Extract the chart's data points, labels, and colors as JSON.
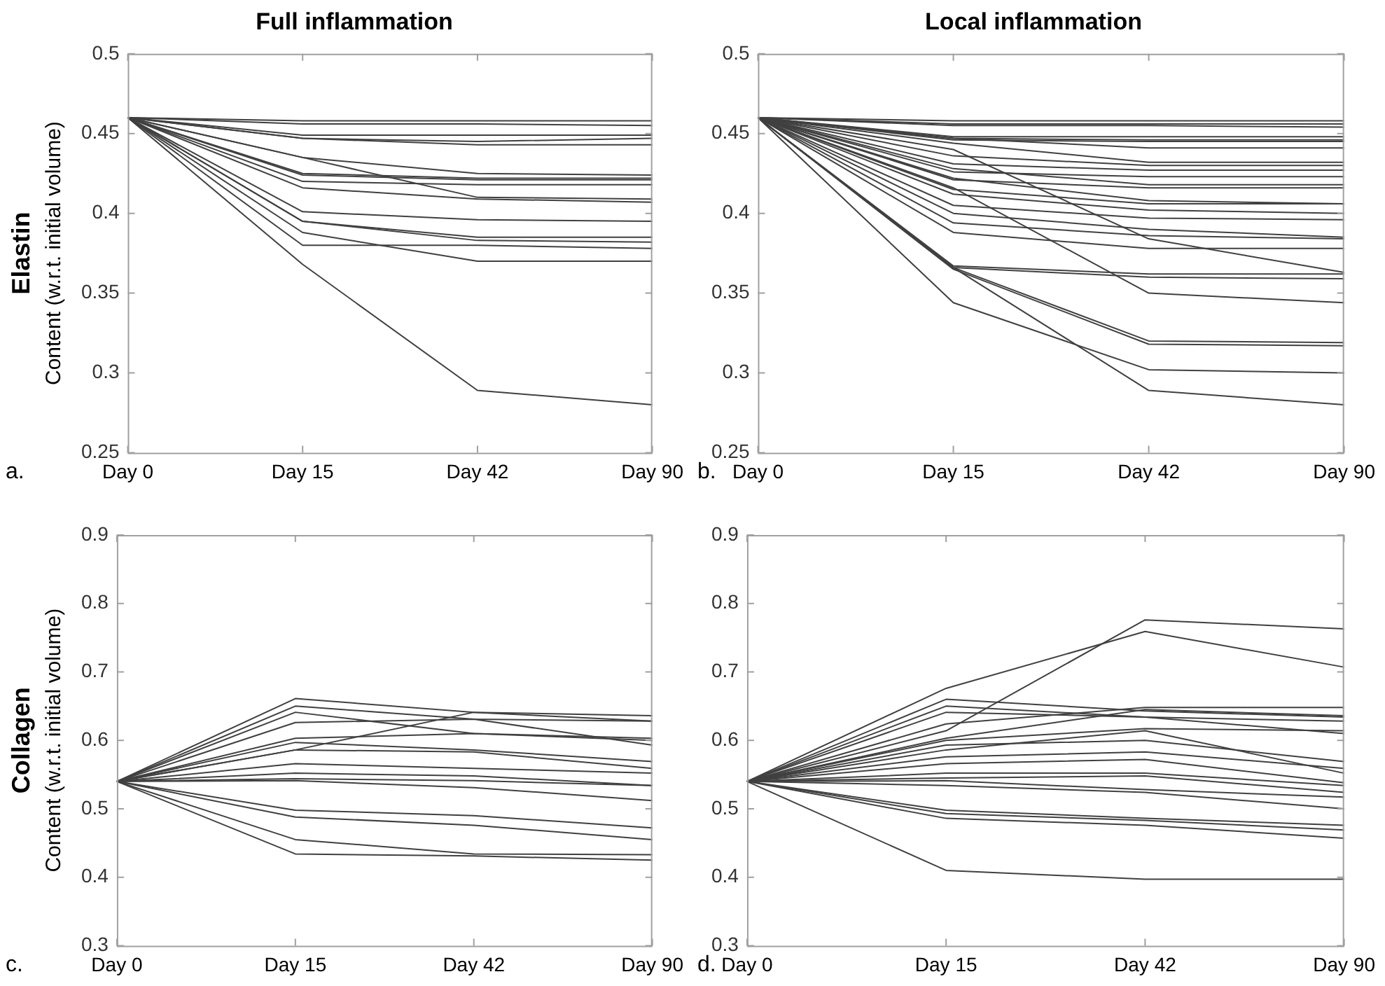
{
  "chart_data": [
    {
      "type": "line",
      "title": "Full inflammation",
      "ylabel": "Content (w.r.t. initial volume)",
      "annotations": [
        "Elastin",
        "a."
      ],
      "categories": [
        "Day 0",
        "Day 15",
        "Day 42",
        "Day 90"
      ],
      "ylim": [
        0.25,
        0.5
      ],
      "yticks": [
        0.25,
        0.3,
        0.35,
        0.4,
        0.45,
        0.5
      ],
      "grid": false,
      "legend": false,
      "series": [
        {
          "color": "#404040",
          "values": [
            0.46,
            0.458,
            0.458,
            0.458
          ]
        },
        {
          "color": "#404040",
          "values": [
            0.46,
            0.456,
            0.456,
            0.455
          ]
        },
        {
          "color": "#404040",
          "values": [
            0.46,
            0.449,
            0.449,
            0.449
          ]
        },
        {
          "color": "#404040",
          "values": [
            0.46,
            0.447,
            0.445,
            0.447
          ]
        },
        {
          "color": "#404040",
          "values": [
            0.46,
            0.447,
            0.443,
            0.443
          ]
        },
        {
          "color": "#404040",
          "values": [
            0.46,
            0.435,
            0.425,
            0.424
          ]
        },
        {
          "color": "#404040",
          "values": [
            0.46,
            0.425,
            0.422,
            0.422
          ]
        },
        {
          "color": "#404040",
          "values": [
            0.46,
            0.424,
            0.421,
            0.421
          ]
        },
        {
          "color": "#404040",
          "values": [
            0.46,
            0.42,
            0.418,
            0.418
          ]
        },
        {
          "color": "#404040",
          "values": [
            0.46,
            0.435,
            0.41,
            0.409
          ]
        },
        {
          "color": "#404040",
          "values": [
            0.46,
            0.416,
            0.409,
            0.407
          ]
        },
        {
          "color": "#404040",
          "values": [
            0.46,
            0.401,
            0.396,
            0.395
          ]
        },
        {
          "color": "#404040",
          "values": [
            0.46,
            0.395,
            0.385,
            0.385
          ]
        },
        {
          "color": "#404040",
          "values": [
            0.46,
            0.395,
            0.383,
            0.382
          ]
        },
        {
          "color": "#404040",
          "values": [
            0.46,
            0.38,
            0.38,
            0.378
          ]
        },
        {
          "color": "#404040",
          "values": [
            0.46,
            0.388,
            0.37,
            0.37
          ]
        },
        {
          "color": "#404040",
          "values": [
            0.46,
            0.368,
            0.289,
            0.28
          ]
        }
      ]
    },
    {
      "type": "line",
      "title": "Local inflammation",
      "annotations": [
        "b."
      ],
      "categories": [
        "Day 0",
        "Day 15",
        "Day 42",
        "Day 90"
      ],
      "ylim": [
        0.25,
        0.5
      ],
      "yticks": [
        0.25,
        0.3,
        0.35,
        0.4,
        0.45,
        0.5
      ],
      "grid": false,
      "legend": false,
      "series": [
        {
          "color": "#404040",
          "values": [
            0.46,
            0.458,
            0.458,
            0.458
          ]
        },
        {
          "color": "#404040",
          "values": [
            0.46,
            0.456,
            0.456,
            0.456
          ]
        },
        {
          "color": "#404040",
          "values": [
            0.46,
            0.455,
            0.455,
            0.454
          ]
        },
        {
          "color": "#404040",
          "values": [
            0.46,
            0.448,
            0.448,
            0.448
          ]
        },
        {
          "color": "#404040",
          "values": [
            0.46,
            0.447,
            0.446,
            0.446
          ]
        },
        {
          "color": "#404040",
          "values": [
            0.46,
            0.446,
            0.445,
            0.445
          ]
        },
        {
          "color": "#404040",
          "values": [
            0.46,
            0.447,
            0.441,
            0.441
          ]
        },
        {
          "color": "#404040",
          "values": [
            0.46,
            0.444,
            0.432,
            0.432
          ]
        },
        {
          "color": "#404040",
          "values": [
            0.46,
            0.436,
            0.43,
            0.43
          ]
        },
        {
          "color": "#404040",
          "values": [
            0.46,
            0.431,
            0.427,
            0.427
          ]
        },
        {
          "color": "#404040",
          "values": [
            0.46,
            0.426,
            0.423,
            0.423
          ]
        },
        {
          "color": "#404040",
          "values": [
            0.46,
            0.428,
            0.418,
            0.418
          ]
        },
        {
          "color": "#404040",
          "values": [
            0.46,
            0.421,
            0.416,
            0.416
          ]
        },
        {
          "color": "#404040",
          "values": [
            0.46,
            0.422,
            0.408,
            0.406
          ]
        },
        {
          "color": "#404040",
          "values": [
            0.46,
            0.415,
            0.406,
            0.406
          ]
        },
        {
          "color": "#404040",
          "values": [
            0.46,
            0.412,
            0.402,
            0.4
          ]
        },
        {
          "color": "#404040",
          "values": [
            0.46,
            0.405,
            0.397,
            0.396
          ]
        },
        {
          "color": "#404040",
          "values": [
            0.46,
            0.4,
            0.39,
            0.385
          ]
        },
        {
          "color": "#404040",
          "values": [
            0.46,
            0.394,
            0.386,
            0.384
          ]
        },
        {
          "color": "#404040",
          "values": [
            0.46,
            0.388,
            0.378,
            0.378
          ]
        },
        {
          "color": "#404040",
          "values": [
            0.46,
            0.44,
            0.384,
            0.363
          ]
        },
        {
          "color": "#404040",
          "values": [
            0.46,
            0.416,
            0.35,
            0.344
          ]
        },
        {
          "color": "#404040",
          "values": [
            0.46,
            0.367,
            0.362,
            0.362
          ]
        },
        {
          "color": "#404040",
          "values": [
            0.46,
            0.366,
            0.36,
            0.359
          ]
        },
        {
          "color": "#404040",
          "values": [
            0.46,
            0.366,
            0.32,
            0.319
          ]
        },
        {
          "color": "#404040",
          "values": [
            0.46,
            0.365,
            0.318,
            0.317
          ]
        },
        {
          "color": "#404040",
          "values": [
            0.46,
            0.344,
            0.302,
            0.3
          ]
        },
        {
          "color": "#404040",
          "values": [
            0.46,
            0.366,
            0.289,
            0.28
          ]
        }
      ]
    },
    {
      "type": "line",
      "ylabel": "Content (w.r.t. initial volume)",
      "annotations": [
        "Collagen",
        "c."
      ],
      "categories": [
        "Day 0",
        "Day 15",
        "Day 42",
        "Day 90"
      ],
      "ylim": [
        0.3,
        0.9
      ],
      "yticks": [
        0.3,
        0.4,
        0.5,
        0.6,
        0.7,
        0.8,
        0.9
      ],
      "grid": false,
      "legend": false,
      "series": [
        {
          "color": "#404040",
          "values": [
            0.54,
            0.661,
            0.641,
            0.636
          ]
        },
        {
          "color": "#404040",
          "values": [
            0.54,
            0.65,
            0.631,
            0.628
          ]
        },
        {
          "color": "#404040",
          "values": [
            0.54,
            0.641,
            0.61,
            0.603
          ]
        },
        {
          "color": "#404040",
          "values": [
            0.54,
            0.626,
            0.631,
            0.593
          ]
        },
        {
          "color": "#404040",
          "values": [
            0.54,
            0.586,
            0.641,
            0.628
          ]
        },
        {
          "color": "#404040",
          "values": [
            0.54,
            0.603,
            0.61,
            0.6
          ]
        },
        {
          "color": "#404040",
          "values": [
            0.54,
            0.597,
            0.586,
            0.569
          ]
        },
        {
          "color": "#404040",
          "values": [
            0.54,
            0.586,
            0.583,
            0.559
          ]
        },
        {
          "color": "#404040",
          "values": [
            0.54,
            0.566,
            0.559,
            0.552
          ]
        },
        {
          "color": "#404040",
          "values": [
            0.54,
            0.552,
            0.548,
            0.534
          ]
        },
        {
          "color": "#404040",
          "values": [
            0.54,
            0.544,
            0.541,
            0.534
          ]
        },
        {
          "color": "#404040",
          "values": [
            0.54,
            0.541,
            0.531,
            0.512
          ]
        },
        {
          "color": "#404040",
          "values": [
            0.54,
            0.498,
            0.49,
            0.472
          ]
        },
        {
          "color": "#404040",
          "values": [
            0.54,
            0.488,
            0.476,
            0.455
          ]
        },
        {
          "color": "#404040",
          "values": [
            0.54,
            0.455,
            0.434,
            0.433
          ]
        },
        {
          "color": "#404040",
          "values": [
            0.54,
            0.434,
            0.431,
            0.425
          ]
        }
      ]
    },
    {
      "type": "line",
      "annotations": [
        "d."
      ],
      "categories": [
        "Day 0",
        "Day 15",
        "Day 42",
        "Day 90"
      ],
      "ylim": [
        0.3,
        0.9
      ],
      "yticks": [
        0.3,
        0.4,
        0.5,
        0.6,
        0.7,
        0.8,
        0.9
      ],
      "grid": false,
      "legend": false,
      "series": [
        {
          "color": "#404040",
          "values": [
            0.54,
            0.676,
            0.759,
            0.707
          ]
        },
        {
          "color": "#404040",
          "values": [
            0.54,
            0.614,
            0.776,
            0.763
          ]
        },
        {
          "color": "#404040",
          "values": [
            0.54,
            0.66,
            0.643,
            0.634
          ]
        },
        {
          "color": "#404040",
          "values": [
            0.54,
            0.65,
            0.634,
            0.61
          ]
        },
        {
          "color": "#404040",
          "values": [
            0.54,
            0.641,
            0.634,
            0.628
          ]
        },
        {
          "color": "#404040",
          "values": [
            0.54,
            0.624,
            0.648,
            0.648
          ]
        },
        {
          "color": "#404040",
          "values": [
            0.54,
            0.603,
            0.645,
            0.636
          ]
        },
        {
          "color": "#404040",
          "values": [
            0.54,
            0.6,
            0.617,
            0.614
          ]
        },
        {
          "color": "#404040",
          "values": [
            0.54,
            0.593,
            0.6,
            0.569
          ]
        },
        {
          "color": "#404040",
          "values": [
            0.54,
            0.586,
            0.614,
            0.552
          ]
        },
        {
          "color": "#404040",
          "values": [
            0.54,
            0.576,
            0.583,
            0.559
          ]
        },
        {
          "color": "#404040",
          "values": [
            0.54,
            0.566,
            0.572,
            0.538
          ]
        },
        {
          "color": "#404040",
          "values": [
            0.54,
            0.552,
            0.552,
            0.534
          ]
        },
        {
          "color": "#404040",
          "values": [
            0.54,
            0.545,
            0.548,
            0.524
          ]
        },
        {
          "color": "#404040",
          "values": [
            0.54,
            0.541,
            0.528,
            0.517
          ]
        },
        {
          "color": "#404040",
          "values": [
            0.54,
            0.534,
            0.524,
            0.5
          ]
        },
        {
          "color": "#404040",
          "values": [
            0.54,
            0.498,
            0.486,
            0.476
          ]
        },
        {
          "color": "#404040",
          "values": [
            0.54,
            0.493,
            0.483,
            0.469
          ]
        },
        {
          "color": "#404040",
          "values": [
            0.54,
            0.486,
            0.476,
            0.457
          ]
        },
        {
          "color": "#404040",
          "values": [
            0.54,
            0.41,
            0.397,
            0.397
          ]
        }
      ]
    }
  ]
}
